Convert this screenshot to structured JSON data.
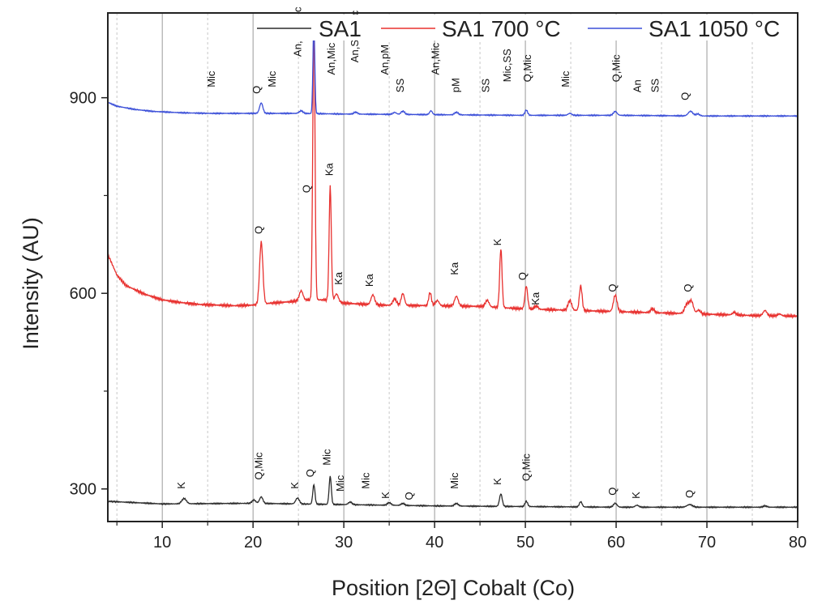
{
  "chart_data": {
    "type": "line",
    "title": "",
    "xlabel": "Position [2Θ] Cobalt (Co)",
    "ylabel": "Intensity (AU)",
    "xlim": [
      4,
      80
    ],
    "ylim": [
      250,
      1030
    ],
    "x_ticks": [
      10,
      20,
      30,
      40,
      50,
      60,
      70,
      80
    ],
    "y_ticks": [
      300,
      600,
      900
    ],
    "x_tick_labels": [
      "10",
      "20",
      "30",
      "40",
      "50",
      "60",
      "70",
      "80"
    ],
    "y_tick_labels": [
      "300",
      "600",
      "900"
    ],
    "grid": "vertical lines at x = 10, 20, 30, 40, 50, 60, 70",
    "legend_position": "top",
    "series": [
      {
        "name": "SA1",
        "color": "#2b2b2b",
        "baseline": [
          [
            4,
            281
          ],
          [
            10,
            277
          ],
          [
            20,
            278
          ],
          [
            30,
            276
          ],
          [
            40,
            274
          ],
          [
            50,
            273
          ],
          [
            60,
            272
          ],
          [
            70,
            272
          ],
          [
            80,
            272
          ]
        ],
        "peaks": [
          [
            12.4,
            8,
            0.25
          ],
          [
            20.1,
            5,
            0.2
          ],
          [
            20.9,
            10,
            0.18
          ],
          [
            24.9,
            9,
            0.2
          ],
          [
            26.7,
            30,
            0.12
          ],
          [
            28.5,
            43,
            0.12
          ],
          [
            30.7,
            4,
            0.2
          ],
          [
            35.0,
            4,
            0.2
          ],
          [
            36.5,
            3,
            0.2
          ],
          [
            42.4,
            4,
            0.2
          ],
          [
            47.3,
            19,
            0.15
          ],
          [
            50.1,
            8,
            0.15
          ],
          [
            56.1,
            8,
            0.15
          ],
          [
            59.9,
            6,
            0.2
          ],
          [
            62.3,
            3,
            0.2
          ],
          [
            68.1,
            4,
            0.3
          ],
          [
            76.4,
            2,
            0.2
          ]
        ]
      },
      {
        "name": "SA1 700 °C",
        "color": "#e8312f",
        "baseline": [
          [
            4,
            660
          ],
          [
            5,
            628
          ],
          [
            6,
            612
          ],
          [
            8,
            599
          ],
          [
            10,
            590
          ],
          [
            12,
            586
          ],
          [
            14,
            583
          ],
          [
            16,
            582
          ],
          [
            18,
            581
          ],
          [
            20,
            582
          ],
          [
            22,
            585
          ],
          [
            24,
            587
          ],
          [
            26,
            590
          ],
          [
            28,
            590
          ],
          [
            30,
            585
          ],
          [
            34,
            582
          ],
          [
            40,
            581
          ],
          [
            45,
            580
          ],
          [
            50,
            576
          ],
          [
            55,
            574
          ],
          [
            60,
            572
          ],
          [
            65,
            570
          ],
          [
            70,
            568
          ],
          [
            75,
            566
          ],
          [
            80,
            565
          ]
        ],
        "peaks": [
          [
            20.9,
            95,
            0.18
          ],
          [
            25.3,
            15,
            0.2
          ],
          [
            26.7,
            430,
            0.12
          ],
          [
            28.5,
            175,
            0.12
          ],
          [
            29.2,
            12,
            0.2
          ],
          [
            33.2,
            15,
            0.2
          ],
          [
            35.6,
            10,
            0.2
          ],
          [
            36.5,
            18,
            0.18
          ],
          [
            39.5,
            20,
            0.15
          ],
          [
            40.3,
            8,
            0.2
          ],
          [
            42.4,
            15,
            0.2
          ],
          [
            45.8,
            10,
            0.2
          ],
          [
            47.3,
            90,
            0.13
          ],
          [
            50.1,
            35,
            0.15
          ],
          [
            51.2,
            5,
            0.2
          ],
          [
            54.9,
            15,
            0.2
          ],
          [
            56.1,
            38,
            0.15
          ],
          [
            59.9,
            25,
            0.2
          ],
          [
            64.0,
            6,
            0.2
          ],
          [
            67.8,
            14,
            0.25
          ],
          [
            68.3,
            18,
            0.22
          ],
          [
            69.1,
            6,
            0.2
          ],
          [
            73.0,
            4,
            0.2
          ],
          [
            76.4,
            8,
            0.2
          ],
          [
            78.0,
            3,
            0.2
          ]
        ]
      },
      {
        "name": "SA1 1050 °C",
        "color": "#3b4fd8",
        "baseline": [
          [
            4,
            893
          ],
          [
            5,
            887
          ],
          [
            7,
            882
          ],
          [
            9,
            879
          ],
          [
            12,
            877
          ],
          [
            15,
            876
          ],
          [
            20,
            876
          ],
          [
            25,
            876
          ],
          [
            30,
            875
          ],
          [
            40,
            874
          ],
          [
            50,
            873
          ],
          [
            60,
            873
          ],
          [
            70,
            872
          ],
          [
            80,
            872
          ]
        ],
        "peaks": [
          [
            20.9,
            16,
            0.18
          ],
          [
            25.3,
            4,
            0.2
          ],
          [
            26.7,
            140,
            0.1
          ],
          [
            31.3,
            3,
            0.2
          ],
          [
            35.6,
            3,
            0.2
          ],
          [
            36.5,
            5,
            0.2
          ],
          [
            39.6,
            6,
            0.15
          ],
          [
            42.4,
            4,
            0.2
          ],
          [
            50.1,
            8,
            0.15
          ],
          [
            54.9,
            3,
            0.2
          ],
          [
            59.9,
            6,
            0.2
          ],
          [
            68.2,
            7,
            0.25
          ],
          [
            69.0,
            3,
            0.2
          ]
        ]
      }
    ],
    "annotations": [
      {
        "text": "K",
        "x": 12.5,
        "y": 300,
        "series": "SA1"
      },
      {
        "text": "Q,Mic",
        "x": 21.0,
        "y": 314,
        "series": "SA1"
      },
      {
        "text": "K",
        "x": 25.0,
        "y": 300,
        "series": "SA1"
      },
      {
        "text": "Q",
        "x": 26.7,
        "y": 318,
        "series": "SA1"
      },
      {
        "text": "Mic",
        "x": 28.5,
        "y": 336,
        "series": "SA1"
      },
      {
        "text": "Mic",
        "x": 30.0,
        "y": 296,
        "series": "SA1"
      },
      {
        "text": "Mic",
        "x": 32.8,
        "y": 300,
        "series": "SA1"
      },
      {
        "text": "K",
        "x": 35.0,
        "y": 285,
        "series": "SA1"
      },
      {
        "text": "Q",
        "x": 37.6,
        "y": 283,
        "series": "SA1"
      },
      {
        "text": "Mic",
        "x": 42.6,
        "y": 300,
        "series": "SA1"
      },
      {
        "text": "K",
        "x": 47.3,
        "y": 306,
        "series": "SA1"
      },
      {
        "text": "Q,Mic",
        "x": 50.5,
        "y": 312,
        "series": "SA1"
      },
      {
        "text": "Q",
        "x": 60.0,
        "y": 290,
        "series": "SA1"
      },
      {
        "text": "K",
        "x": 62.6,
        "y": 285,
        "series": "SA1"
      },
      {
        "text": "Q",
        "x": 68.5,
        "y": 286,
        "series": "SA1"
      },
      {
        "text": "Q",
        "x": 21.0,
        "y": 691,
        "series": "SA1 700 °C"
      },
      {
        "text": "Q",
        "x": 26.3,
        "y": 754,
        "series": "SA1 700 °C"
      },
      {
        "text": "Ka",
        "x": 28.8,
        "y": 780,
        "series": "SA1 700 °C"
      },
      {
        "text": "Ka",
        "x": 29.8,
        "y": 613,
        "series": "SA1 700 °C"
      },
      {
        "text": "Ka",
        "x": 33.2,
        "y": 610,
        "series": "SA1 700 °C"
      },
      {
        "text": "Ka",
        "x": 42.6,
        "y": 628,
        "series": "SA1 700 °C"
      },
      {
        "text": "K",
        "x": 47.3,
        "y": 673,
        "series": "SA1 700 °C"
      },
      {
        "text": "Q",
        "x": 50.1,
        "y": 620,
        "series": "SA1 700 °C"
      },
      {
        "text": "Ka",
        "x": 51.5,
        "y": 582,
        "series": "SA1 700 °C"
      },
      {
        "text": "Q",
        "x": 60.0,
        "y": 602,
        "series": "SA1 700 °C"
      },
      {
        "text": "Q",
        "x": 68.3,
        "y": 602,
        "series": "SA1 700 °C"
      },
      {
        "text": "Mic",
        "x": 15.8,
        "y": 916,
        "series": "SA1 1050 °C"
      },
      {
        "text": "Q",
        "x": 20.8,
        "y": 906,
        "series": "SA1 1050 °C"
      },
      {
        "text": "Mic",
        "x": 22.5,
        "y": 916,
        "series": "SA1 1050 °C"
      },
      {
        "text": "An,pM,Mic",
        "x": 25.3,
        "y": 963,
        "series": "SA1 1050 °C"
      },
      {
        "text": "Q",
        "x": 26.4,
        "y": 1013,
        "series": "SA1 1050 °C"
      },
      {
        "text": "An,Mic",
        "x": 29.0,
        "y": 935,
        "series": "SA1 1050 °C"
      },
      {
        "text": "An,SS, Mic",
        "x": 31.6,
        "y": 954,
        "series": "SA1 1050 °C"
      },
      {
        "text": "An,pM",
        "x": 34.9,
        "y": 935,
        "series": "SA1 1050 °C"
      },
      {
        "text": "SS",
        "x": 36.6,
        "y": 908,
        "series": "SA1 1050 °C"
      },
      {
        "text": "An,Mic",
        "x": 40.5,
        "y": 935,
        "series": "SA1 1050 °C"
      },
      {
        "text": "pM",
        "x": 42.7,
        "y": 908,
        "series": "SA1 1050 °C"
      },
      {
        "text": "SS",
        "x": 46.0,
        "y": 908,
        "series": "SA1 1050 °C"
      },
      {
        "text": "Mic,SS",
        "x": 48.4,
        "y": 924,
        "series": "SA1 1050 °C"
      },
      {
        "text": "Q,Mic",
        "x": 50.6,
        "y": 924,
        "series": "SA1 1050 °C"
      },
      {
        "text": "Mic",
        "x": 54.8,
        "y": 916,
        "series": "SA1 1050 °C"
      },
      {
        "text": "Q,Mic",
        "x": 60.4,
        "y": 924,
        "series": "SA1 1050 °C"
      },
      {
        "text": "An",
        "x": 62.7,
        "y": 908,
        "series": "SA1 1050 °C"
      },
      {
        "text": "SS",
        "x": 64.7,
        "y": 908,
        "series": "SA1 1050 °C"
      },
      {
        "text": "Q",
        "x": 68.0,
        "y": 896,
        "series": "SA1 1050 °C"
      }
    ]
  }
}
